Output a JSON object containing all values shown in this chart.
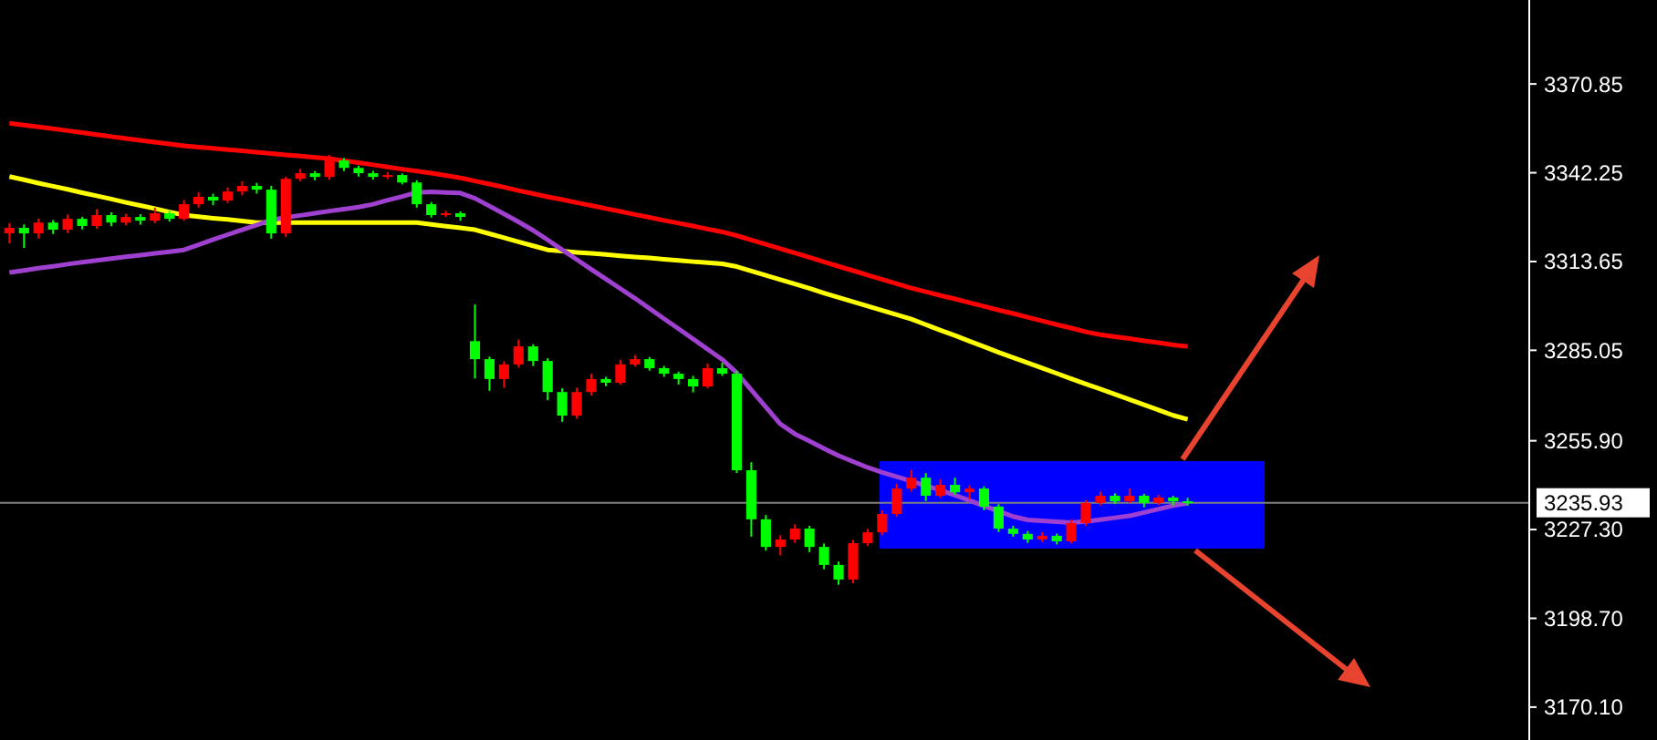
{
  "chart_data": {
    "type": "candlestick",
    "categories": [
      null,
      null,
      null,
      null,
      null,
      null,
      null,
      null,
      null,
      null,
      null,
      null,
      null,
      null,
      null,
      null,
      null,
      null,
      null,
      null,
      null,
      null,
      null,
      null,
      null,
      null,
      null,
      null,
      null,
      null,
      null,
      null,
      null,
      null,
      null,
      null,
      null,
      null,
      null,
      null,
      null,
      null,
      null,
      null,
      null,
      null,
      null,
      null,
      null,
      null,
      null,
      null,
      null,
      null,
      null,
      null,
      null,
      null,
      null,
      null,
      null,
      null,
      null,
      null,
      null,
      null,
      null,
      null,
      null,
      null,
      null,
      null,
      null,
      null,
      null,
      null,
      null,
      null,
      null,
      null,
      null,
      null
    ],
    "ohlc": [
      [
        3322.7,
        3326.0,
        3319.5,
        3324.5
      ],
      [
        3324.5,
        3325.6,
        3318.0,
        3322.7
      ],
      [
        3322.7,
        3327.5,
        3321.0,
        3326.2
      ],
      [
        3326.2,
        3327.0,
        3322.5,
        3323.9
      ],
      [
        3323.9,
        3328.8,
        3322.8,
        3327.4
      ],
      [
        3327.4,
        3328.0,
        3324.0,
        3325.1
      ],
      [
        3325.1,
        3330.5,
        3324.2,
        3328.6
      ],
      [
        3328.6,
        3329.5,
        3325.0,
        3326.2
      ],
      [
        3326.2,
        3329.0,
        3325.3,
        3328.0
      ],
      [
        3328.0,
        3328.9,
        3325.5,
        3326.8
      ],
      [
        3326.8,
        3331.0,
        3326.0,
        3329.2
      ],
      [
        3329.2,
        3330.0,
        3326.5,
        3327.4
      ],
      [
        3327.4,
        3333.5,
        3326.8,
        3332.1
      ],
      [
        3332.1,
        3336.0,
        3331.0,
        3334.5
      ],
      [
        3334.5,
        3335.5,
        3331.8,
        3333.3
      ],
      [
        3333.3,
        3337.5,
        3332.5,
        3336.2
      ],
      [
        3336.2,
        3339.5,
        3335.0,
        3338.0
      ],
      [
        3338.0,
        3339.0,
        3335.5,
        3336.8
      ],
      [
        3336.8,
        3338.0,
        3321.0,
        3322.7
      ],
      [
        3322.7,
        3341.0,
        3321.5,
        3340.3
      ],
      [
        3340.3,
        3343.5,
        3339.5,
        3342.1
      ],
      [
        3342.1,
        3342.8,
        3339.8,
        3340.9
      ],
      [
        3340.9,
        3348.0,
        3340.0,
        3346.2
      ],
      [
        3346.2,
        3347.0,
        3342.8,
        3343.8
      ],
      [
        3343.8,
        3344.5,
        3341.0,
        3342.1
      ],
      [
        3342.1,
        3342.9,
        3340.0,
        3340.9
      ],
      [
        3340.9,
        3342.5,
        3340.2,
        3341.5
      ],
      [
        3341.5,
        3342.0,
        3338.5,
        3339.1
      ],
      [
        3339.1,
        3339.8,
        3331.0,
        3332.1
      ],
      [
        3332.1,
        3332.8,
        3327.8,
        3328.6
      ],
      [
        3328.6,
        3330.0,
        3328.0,
        3329.2
      ],
      [
        3329.2,
        3329.8,
        3326.8,
        3328.0
      ],
      [
        3288.0,
        3299.8,
        3276.0,
        3282.2
      ],
      [
        3282.2,
        3283.0,
        3272.0,
        3275.8
      ],
      [
        3275.8,
        3281.5,
        3273.0,
        3280.5
      ],
      [
        3280.5,
        3288.5,
        3279.5,
        3286.3
      ],
      [
        3286.3,
        3287.0,
        3280.0,
        3281.6
      ],
      [
        3281.6,
        3282.5,
        3269.0,
        3271.6
      ],
      [
        3271.6,
        3272.8,
        3262.0,
        3264.0
      ],
      [
        3264.0,
        3273.0,
        3263.0,
        3271.6
      ],
      [
        3271.6,
        3277.5,
        3270.5,
        3275.8
      ],
      [
        3275.8,
        3276.5,
        3273.5,
        3274.6
      ],
      [
        3274.6,
        3282.0,
        3274.0,
        3280.5
      ],
      [
        3280.5,
        3283.5,
        3279.8,
        3282.2
      ],
      [
        3282.2,
        3282.9,
        3278.5,
        3279.3
      ],
      [
        3279.3,
        3280.0,
        3276.5,
        3277.5
      ],
      [
        3277.5,
        3278.2,
        3274.0,
        3275.8
      ],
      [
        3275.8,
        3276.8,
        3271.5,
        3273.4
      ],
      [
        3273.4,
        3280.8,
        3272.8,
        3279.3
      ],
      [
        3279.3,
        3281.0,
        3276.8,
        3277.5
      ],
      [
        3277.5,
        3278.5,
        3245.5,
        3246.4
      ],
      [
        3246.4,
        3249.0,
        3225.0,
        3230.6
      ],
      [
        3230.6,
        3232.0,
        3220.5,
        3221.7
      ],
      [
        3221.7,
        3225.5,
        3219.0,
        3224.1
      ],
      [
        3224.1,
        3229.0,
        3223.0,
        3227.6
      ],
      [
        3227.6,
        3228.5,
        3220.0,
        3221.7
      ],
      [
        3221.7,
        3222.8,
        3214.5,
        3215.9
      ],
      [
        3215.9,
        3217.0,
        3209.5,
        3211.2
      ],
      [
        3211.2,
        3224.0,
        3210.0,
        3222.9
      ],
      [
        3222.9,
        3227.5,
        3222.0,
        3226.4
      ],
      [
        3226.4,
        3233.5,
        3225.5,
        3232.3
      ],
      [
        3232.3,
        3242.0,
        3231.5,
        3240.5
      ],
      [
        3240.5,
        3246.5,
        3239.5,
        3244.0
      ],
      [
        3244.0,
        3245.5,
        3236.5,
        3238.2
      ],
      [
        3238.2,
        3243.5,
        3237.5,
        3241.7
      ],
      [
        3241.7,
        3244.0,
        3238.5,
        3239.3
      ],
      [
        3239.3,
        3241.5,
        3237.0,
        3240.5
      ],
      [
        3240.5,
        3241.2,
        3233.5,
        3234.7
      ],
      [
        3234.7,
        3235.5,
        3226.5,
        3227.6
      ],
      [
        3227.6,
        3228.5,
        3225.0,
        3225.9
      ],
      [
        3225.9,
        3226.8,
        3223.0,
        3224.1
      ],
      [
        3224.1,
        3226.5,
        3223.2,
        3225.3
      ],
      [
        3225.3,
        3226.0,
        3222.5,
        3223.5
      ],
      [
        3223.5,
        3230.5,
        3222.8,
        3229.4
      ],
      [
        3229.4,
        3236.8,
        3228.5,
        3235.9
      ],
      [
        3235.9,
        3239.5,
        3235.0,
        3238.2
      ],
      [
        3238.2,
        3239.0,
        3235.5,
        3236.4
      ],
      [
        3236.4,
        3240.5,
        3235.8,
        3238.2
      ],
      [
        3238.2,
        3238.8,
        3234.5,
        3235.9
      ],
      [
        3235.9,
        3238.5,
        3235.2,
        3237.6
      ],
      [
        3237.6,
        3238.2,
        3235.0,
        3236.4
      ],
      [
        3236.4,
        3237.5,
        3235.0,
        3235.93
      ]
    ],
    "colors": [
      "#ff0000",
      "#00ff00",
      "#ff0000",
      "#00ff00",
      "#ff0000",
      "#00ff00",
      "#ff0000",
      "#00ff00",
      "#ff0000",
      "#00ff00",
      "#ff0000",
      "#00ff00",
      "#ff0000",
      "#ff0000",
      "#00ff00",
      "#ff0000",
      "#ff0000",
      "#00ff00",
      "#00ff00",
      "#ff0000",
      "#ff0000",
      "#00ff00",
      "#ff0000",
      "#00ff00",
      "#00ff00",
      "#00ff00",
      "#ff0000",
      "#00ff00",
      "#00ff00",
      "#00ff00",
      "#ff0000",
      "#00ff00",
      "#00ff00",
      "#00ff00",
      "#ff0000",
      "#ff0000",
      "#00ff00",
      "#00ff00",
      "#00ff00",
      "#ff0000",
      "#ff0000",
      "#00ff00",
      "#ff0000",
      "#ff0000",
      "#00ff00",
      "#00ff00",
      "#00ff00",
      "#00ff00",
      "#ff0000",
      "#00ff00",
      "#00ff00",
      "#00ff00",
      "#00ff00",
      "#ff0000",
      "#ff0000",
      "#00ff00",
      "#00ff00",
      "#00ff00",
      "#ff0000",
      "#ff0000",
      "#ff0000",
      "#ff0000",
      "#ff0000",
      "#00ff00",
      "#ff0000",
      "#00ff00",
      "#ff0000",
      "#00ff00",
      "#00ff00",
      "#00ff00",
      "#00ff00",
      "#ff0000",
      "#00ff00",
      "#ff0000",
      "#ff0000",
      "#ff0000",
      "#00ff00",
      "#ff0000",
      "#00ff00",
      "#ff0000",
      "#00ff00",
      "#00ff00"
    ],
    "series": [
      {
        "type": "line",
        "color": "#ff0000",
        "values": [
          3358.2,
          3357.6,
          3357.0,
          3356.4,
          3355.8,
          3355.2,
          3354.5,
          3353.9,
          3353.3,
          3352.7,
          3352.1,
          3351.5,
          3350.9,
          3350.5,
          3350.1,
          3349.7,
          3349.3,
          3348.9,
          3348.4,
          3348.0,
          3347.6,
          3347.2,
          3346.8,
          3346.1,
          3345.5,
          3344.8,
          3344.1,
          3343.4,
          3342.8,
          3342.1,
          3341.4,
          3340.6,
          3339.6,
          3338.6,
          3337.6,
          3336.5,
          3335.5,
          3334.5,
          3333.6,
          3332.6,
          3331.7,
          3330.7,
          3329.8,
          3328.8,
          3327.9,
          3326.9,
          3326.0,
          3325.1,
          3324.1,
          3323.2,
          3322.0,
          3320.6,
          3319.2,
          3317.8,
          3316.4,
          3315.0,
          3313.5,
          3312.1,
          3310.7,
          3309.3,
          3307.9,
          3306.5,
          3305.1,
          3303.9,
          3302.7,
          3301.6,
          3300.4,
          3299.2,
          3298.0,
          3296.9,
          3295.7,
          3294.5,
          3293.3,
          3292.2,
          3291.0,
          3290.1,
          3289.4,
          3288.8,
          3288.1,
          3287.5,
          3286.8,
          3286.3
        ]
      },
      {
        "type": "line",
        "color": "#ffff00",
        "values": [
          3341.0,
          3340.0,
          3338.9,
          3337.9,
          3336.9,
          3335.8,
          3334.8,
          3333.8,
          3332.7,
          3331.7,
          3330.7,
          3329.6,
          3328.6,
          3328.1,
          3327.6,
          3327.2,
          3326.7,
          3326.2,
          3326.2,
          3326.2,
          3326.2,
          3326.2,
          3326.2,
          3326.2,
          3326.2,
          3326.2,
          3326.2,
          3326.2,
          3326.2,
          3325.6,
          3325.0,
          3324.5,
          3323.9,
          3322.6,
          3321.3,
          3320.0,
          3318.7,
          3317.4,
          3317.0,
          3316.6,
          3316.3,
          3315.9,
          3315.5,
          3315.1,
          3314.8,
          3314.4,
          3314.0,
          3313.6,
          3313.3,
          3312.9,
          3312.0,
          3310.6,
          3309.2,
          3307.8,
          3306.4,
          3305.0,
          3303.5,
          3302.1,
          3300.7,
          3299.3,
          3297.9,
          3296.5,
          3295.1,
          3293.3,
          3291.5,
          3289.8,
          3288.0,
          3286.2,
          3284.4,
          3282.7,
          3281.0,
          3279.3,
          3277.6,
          3275.9,
          3274.2,
          3272.6,
          3270.9,
          3269.2,
          3267.5,
          3265.8,
          3264.1,
          3262.8
        ]
      },
      {
        "type": "line",
        "color": "#a040d0",
        "values": [
          3310.1,
          3310.8,
          3311.5,
          3312.1,
          3312.8,
          3313.4,
          3314.0,
          3314.6,
          3315.2,
          3315.7,
          3316.3,
          3316.8,
          3317.4,
          3319.0,
          3320.7,
          3322.3,
          3323.9,
          3325.4,
          3327.0,
          3327.9,
          3328.5,
          3329.2,
          3329.9,
          3330.5,
          3331.2,
          3332.1,
          3333.4,
          3334.6,
          3335.9,
          3336.1,
          3335.9,
          3335.7,
          3334.0,
          3331.5,
          3329.0,
          3326.4,
          3323.7,
          3320.6,
          3317.4,
          3314.3,
          3311.1,
          3308.0,
          3304.9,
          3301.8,
          3298.5,
          3295.2,
          3292.0,
          3288.7,
          3285.4,
          3282.1,
          3277.8,
          3272.3,
          3266.8,
          3261.3,
          3258.1,
          3255.8,
          3253.4,
          3251.1,
          3249.2,
          3247.3,
          3245.7,
          3244.3,
          3242.9,
          3241.4,
          3240.0,
          3238.4,
          3236.7,
          3234.9,
          3233.2,
          3231.5,
          3230.4,
          3230.1,
          3229.8,
          3229.5,
          3229.9,
          3230.5,
          3231.1,
          3231.7,
          3232.8,
          3233.9,
          3235.0,
          3235.8
        ]
      }
    ],
    "ylim": [
      3159.5,
      3397.9
    ],
    "yticks": [
      3370.85,
      3342.25,
      3313.65,
      3285.05,
      {
        "value": 3255.9,
        "label": "3255.90"
      },
      {
        "value": 3227.3,
        "label": "3227.30"
      },
      {
        "value": 3198.7,
        "label": "3198.70"
      },
      {
        "value": 3170.1,
        "label": "3170.10"
      }
    ],
    "ref_lines": [
      {
        "axis": "y",
        "value": 3235.93,
        "label": "3235.93",
        "color": "#808080"
      }
    ],
    "tick_labels": "y"
  }
}
